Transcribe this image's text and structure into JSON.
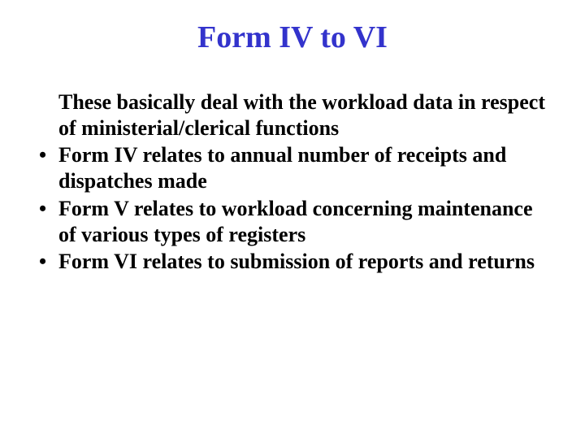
{
  "title": "Form IV to VI",
  "intro": "These basically deal with the workload data in respect of ministerial/clerical functions",
  "bullets": [
    "Form IV relates to annual number of receipts and dispatches made",
    "Form V relates to workload concerning maintenance of various types of registers",
    "Form VI relates to submission of reports and returns"
  ],
  "colors": {
    "title": "#3333cc",
    "text": "#000000",
    "background": "#ffffff"
  },
  "typography": {
    "title_fontsize": 38,
    "body_fontsize": 26,
    "font_family": "Times New Roman",
    "title_weight": "bold",
    "body_weight": "bold"
  }
}
